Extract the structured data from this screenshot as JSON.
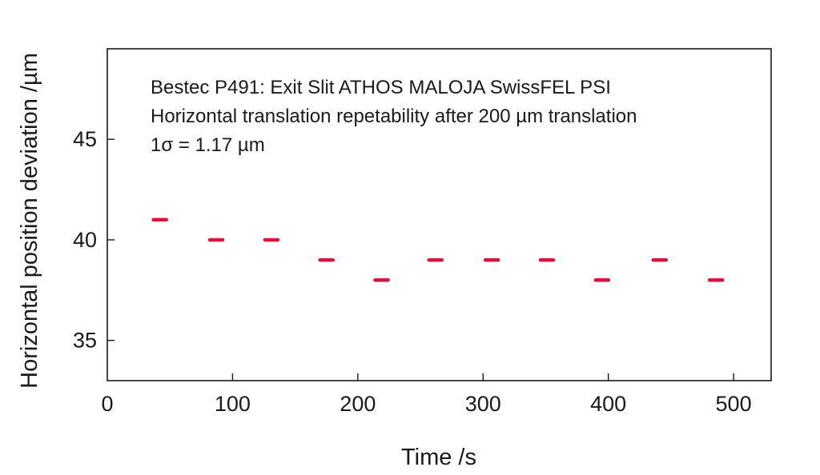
{
  "chart_data": {
    "type": "scatter",
    "title": "",
    "xlabel": "Time /s",
    "ylabel": "Horizontal position deviation /µm",
    "xlim": [
      0,
      530
    ],
    "ylim": [
      33,
      49.5
    ],
    "x_ticks": [
      0,
      100,
      200,
      300,
      400,
      500
    ],
    "y_ticks": [
      35,
      40,
      45
    ],
    "grid": false,
    "marker": "dash",
    "marker_color": "#d6163f",
    "annotations": [
      "Bestec P491: Exit Slit ATHOS MALOJA SwissFEL PSI",
      "Horizontal translation repetability after 200 µm translation",
      "1σ = 1.17 µm"
    ],
    "series": [
      {
        "x": [
          42,
          87,
          131,
          175,
          219,
          262,
          307,
          351,
          395,
          441,
          486
        ],
        "y": [
          41,
          40,
          40,
          39,
          38,
          39,
          39,
          39,
          38,
          39,
          38
        ]
      }
    ]
  }
}
